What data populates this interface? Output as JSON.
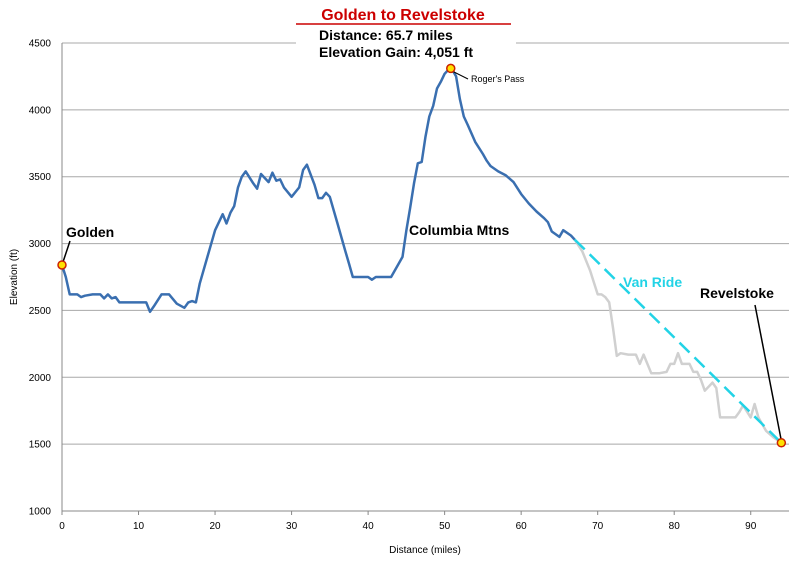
{
  "chart_data": {
    "type": "line",
    "title": "Golden to Revelstoke",
    "subtitle_lines": [
      "Distance: 65.7 miles",
      "Elevation Gain: 4,051 ft"
    ],
    "xlabel": "Distance (miles)",
    "ylabel": "Elevation (ft)",
    "xlim": [
      0,
      95
    ],
    "ylim": [
      1000,
      4500
    ],
    "x_ticks": [
      0,
      10,
      20,
      30,
      40,
      50,
      60,
      70,
      80,
      90
    ],
    "y_ticks": [
      1000,
      1500,
      2000,
      2500,
      3000,
      3500,
      4000,
      4500
    ],
    "grid": "horizontal",
    "colors": {
      "ride": "#3a6fb0",
      "van_terrain": "#d0d0d0",
      "van_ride": "#22d3e6",
      "marker_fill": "#ffe000",
      "marker_edge": "#cc2200",
      "title": "#cc0000",
      "grid": "#a8a8a8"
    },
    "series": [
      {
        "name": "",
        "role": "ride",
        "points": [
          [
            0,
            2840
          ],
          [
            0.5,
            2750
          ],
          [
            1,
            2620
          ],
          [
            2,
            2620
          ],
          [
            2.5,
            2600
          ],
          [
            3,
            2610
          ],
          [
            4,
            2620
          ],
          [
            5,
            2620
          ],
          [
            5.5,
            2590
          ],
          [
            6,
            2620
          ],
          [
            6.5,
            2590
          ],
          [
            7,
            2600
          ],
          [
            7.5,
            2560
          ],
          [
            8,
            2560
          ],
          [
            9,
            2560
          ],
          [
            10,
            2560
          ],
          [
            11,
            2560
          ],
          [
            11.5,
            2490
          ],
          [
            12,
            2530
          ],
          [
            13,
            2620
          ],
          [
            14,
            2620
          ],
          [
            15,
            2550
          ],
          [
            16,
            2520
          ],
          [
            16.5,
            2560
          ],
          [
            17,
            2570
          ],
          [
            17.5,
            2560
          ],
          [
            18,
            2700
          ],
          [
            19,
            2900
          ],
          [
            20,
            3100
          ],
          [
            21,
            3220
          ],
          [
            21.5,
            3150
          ],
          [
            22,
            3230
          ],
          [
            22.5,
            3280
          ],
          [
            23,
            3420
          ],
          [
            23.5,
            3500
          ],
          [
            24,
            3540
          ],
          [
            25,
            3450
          ],
          [
            25.5,
            3410
          ],
          [
            26,
            3520
          ],
          [
            27,
            3460
          ],
          [
            27.5,
            3530
          ],
          [
            28,
            3470
          ],
          [
            28.5,
            3480
          ],
          [
            29,
            3420
          ],
          [
            30,
            3350
          ],
          [
            31,
            3420
          ],
          [
            31.5,
            3550
          ],
          [
            32,
            3590
          ],
          [
            33,
            3440
          ],
          [
            33.5,
            3340
          ],
          [
            34,
            3340
          ],
          [
            34.5,
            3380
          ],
          [
            35,
            3350
          ],
          [
            36,
            3150
          ],
          [
            37,
            2950
          ],
          [
            37.5,
            2850
          ],
          [
            38,
            2750
          ],
          [
            39,
            2750
          ],
          [
            40,
            2750
          ],
          [
            40.5,
            2730
          ],
          [
            41,
            2750
          ],
          [
            42,
            2750
          ],
          [
            43,
            2750
          ],
          [
            44,
            2850
          ],
          [
            44.5,
            2900
          ],
          [
            45,
            3100
          ],
          [
            45.5,
            3270
          ],
          [
            46,
            3450
          ],
          [
            46.5,
            3600
          ],
          [
            47,
            3610
          ],
          [
            47.5,
            3800
          ],
          [
            48,
            3950
          ],
          [
            48.5,
            4030
          ],
          [
            49,
            4160
          ],
          [
            49.5,
            4210
          ],
          [
            50,
            4270
          ],
          [
            50.8,
            4320
          ],
          [
            51.5,
            4250
          ],
          [
            52,
            4080
          ],
          [
            52.5,
            3950
          ],
          [
            53,
            3890
          ],
          [
            54,
            3760
          ],
          [
            55,
            3670
          ],
          [
            55.5,
            3620
          ],
          [
            56,
            3580
          ],
          [
            57,
            3540
          ],
          [
            58,
            3510
          ],
          [
            59,
            3460
          ],
          [
            60,
            3370
          ],
          [
            61,
            3300
          ],
          [
            62,
            3240
          ],
          [
            63,
            3190
          ],
          [
            63.5,
            3160
          ],
          [
            64,
            3090
          ],
          [
            65,
            3050
          ],
          [
            65.5,
            3100
          ],
          [
            66.5,
            3060
          ],
          [
            67,
            3030
          ]
        ]
      },
      {
        "name": "",
        "role": "van-terrain",
        "points": [
          [
            67,
            3030
          ],
          [
            68,
            2940
          ],
          [
            69,
            2800
          ],
          [
            70,
            2620
          ],
          [
            70.5,
            2620
          ],
          [
            71,
            2600
          ],
          [
            71.5,
            2560
          ],
          [
            72,
            2370
          ],
          [
            72.5,
            2160
          ],
          [
            73,
            2180
          ],
          [
            74,
            2170
          ],
          [
            75,
            2170
          ],
          [
            75.5,
            2100
          ],
          [
            76,
            2170
          ],
          [
            77,
            2030
          ],
          [
            78,
            2030
          ],
          [
            79,
            2040
          ],
          [
            79.5,
            2100
          ],
          [
            80,
            2100
          ],
          [
            80.5,
            2180
          ],
          [
            81,
            2100
          ],
          [
            82,
            2100
          ],
          [
            82.5,
            2040
          ],
          [
            83,
            2040
          ],
          [
            83.5,
            1980
          ],
          [
            84,
            1900
          ],
          [
            85,
            1960
          ],
          [
            85.5,
            1920
          ],
          [
            86,
            1700
          ],
          [
            87,
            1700
          ],
          [
            88,
            1700
          ],
          [
            88.5,
            1740
          ],
          [
            89,
            1790
          ],
          [
            90,
            1700
          ],
          [
            90.5,
            1800
          ],
          [
            91,
            1700
          ],
          [
            92,
            1600
          ],
          [
            93,
            1550
          ],
          [
            94,
            1510
          ]
        ]
      },
      {
        "name": "Van Ride",
        "role": "van-ride",
        "points": [
          [
            67,
            3030
          ],
          [
            94,
            1510
          ]
        ]
      }
    ],
    "markers": [
      {
        "label": "Golden",
        "x": 0,
        "y": 2840
      },
      {
        "label": "Roger's Pass",
        "x": 50.8,
        "y": 4310
      },
      {
        "label": "Revelstoke",
        "x": 94,
        "y": 1510
      }
    ],
    "annotations": [
      "Golden",
      "Roger's Pass",
      "Columbia Mtns",
      "Van Ride",
      "Revelstoke"
    ]
  }
}
